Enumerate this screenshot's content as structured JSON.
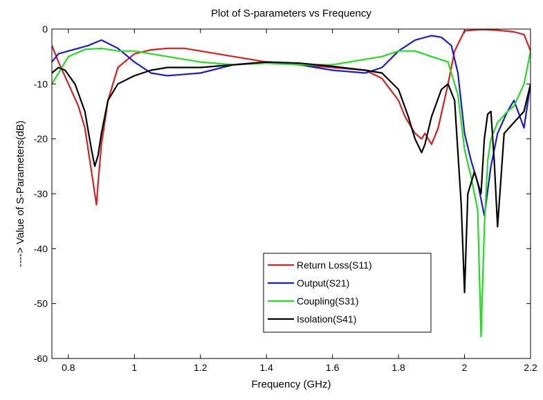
{
  "chart_data": {
    "type": "line",
    "title": "Plot of S-parameters vs Frequency",
    "xlabel": "Frequency (GHz)",
    "ylabel": "----> Value of S-Parameters(dB)",
    "xlim": [
      0.75,
      2.2
    ],
    "ylim": [
      -60,
      0
    ],
    "xticks": [
      0.8,
      1,
      1.2,
      1.4,
      1.6,
      1.8,
      2,
      2.2
    ],
    "xtick_labels": [
      "0.8",
      "1",
      "1.2",
      "1.4",
      "1.6",
      "1.8",
      "2",
      "2.2"
    ],
    "yticks": [
      -60,
      -50,
      -40,
      -30,
      -20,
      -10,
      0
    ],
    "ytick_labels": [
      "-60",
      "-50",
      "-40",
      "-30",
      "-20",
      "-10",
      "0"
    ],
    "grid": false,
    "legend_position": "bottom-center",
    "series": [
      {
        "name": "Return Loss(S11)",
        "color": "#d62020",
        "x": [
          0.75,
          0.77,
          0.8,
          0.83,
          0.85,
          0.87,
          0.88,
          0.885,
          0.89,
          0.9,
          0.92,
          0.95,
          1.0,
          1.05,
          1.1,
          1.15,
          1.2,
          1.3,
          1.4,
          1.5,
          1.6,
          1.7,
          1.75,
          1.8,
          1.82,
          1.85,
          1.87,
          1.88,
          1.9,
          1.92,
          1.95,
          1.97,
          2.0,
          2.05,
          2.1,
          2.15,
          2.18,
          2.2
        ],
        "y": [
          -3,
          -6,
          -10,
          -14,
          -18,
          -26,
          -30,
          -32,
          -28,
          -21,
          -13,
          -7,
          -4.5,
          -3.8,
          -3.5,
          -3.5,
          -4,
          -5,
          -6,
          -6.5,
          -7,
          -7.5,
          -9,
          -13,
          -16,
          -19,
          -20,
          -19,
          -21,
          -18,
          -10,
          -4,
          -0.3,
          -0.1,
          -0.2,
          -0.5,
          -1,
          -4
        ]
      },
      {
        "name": "Output(S21)",
        "color": "#1a1ad4",
        "x": [
          0.75,
          0.77,
          0.8,
          0.83,
          0.86,
          0.9,
          0.95,
          1.0,
          1.05,
          1.1,
          1.2,
          1.3,
          1.4,
          1.5,
          1.6,
          1.7,
          1.75,
          1.8,
          1.85,
          1.9,
          1.93,
          1.96,
          1.98,
          2.0,
          2.02,
          2.04,
          2.06,
          2.08,
          2.1,
          2.13,
          2.15,
          2.18,
          2.2
        ],
        "y": [
          -6,
          -4.5,
          -4,
          -3.5,
          -3,
          -2,
          -3.5,
          -6,
          -8,
          -8.5,
          -8,
          -6.5,
          -6,
          -6.5,
          -7.5,
          -8,
          -7,
          -4,
          -2,
          -1.2,
          -1.5,
          -3,
          -8,
          -19,
          -24,
          -28,
          -34,
          -25,
          -19,
          -15,
          -13,
          -18,
          -10
        ]
      },
      {
        "name": "Coupling(S31)",
        "color": "#22dd22",
        "x": [
          0.75,
          0.77,
          0.8,
          0.85,
          0.9,
          0.95,
          1.0,
          1.1,
          1.2,
          1.3,
          1.4,
          1.5,
          1.6,
          1.7,
          1.75,
          1.8,
          1.85,
          1.9,
          1.95,
          1.98,
          2.0,
          2.02,
          2.04,
          2.05,
          2.06,
          2.07,
          2.08,
          2.1,
          2.13,
          2.15,
          2.18,
          2.2
        ],
        "y": [
          -10,
          -8,
          -5,
          -3.7,
          -3.5,
          -4,
          -4,
          -5,
          -6,
          -6.5,
          -6.2,
          -6.5,
          -6.5,
          -5.5,
          -5,
          -4,
          -4,
          -5,
          -6,
          -12,
          -22,
          -27,
          -33,
          -56,
          -36,
          -24,
          -20,
          -17,
          -15,
          -14,
          -10,
          -4
        ]
      },
      {
        "name": "Isolation(S41)",
        "color": "#000000",
        "x": [
          0.75,
          0.77,
          0.79,
          0.82,
          0.85,
          0.87,
          0.88,
          0.89,
          0.9,
          0.92,
          0.95,
          1.0,
          1.05,
          1.1,
          1.2,
          1.3,
          1.4,
          1.5,
          1.6,
          1.7,
          1.75,
          1.8,
          1.83,
          1.85,
          1.87,
          1.88,
          1.9,
          1.93,
          1.95,
          1.97,
          1.99,
          2.0,
          2.01,
          2.03,
          2.05,
          2.06,
          2.07,
          2.08,
          2.09,
          2.1,
          2.12,
          2.15,
          2.18,
          2.2
        ],
        "y": [
          -8,
          -7,
          -7.5,
          -10,
          -15,
          -22,
          -25,
          -23,
          -19,
          -13,
          -10,
          -8.5,
          -7.5,
          -7,
          -7,
          -6.5,
          -6,
          -6.2,
          -6.8,
          -7.5,
          -8,
          -11,
          -16,
          -20,
          -22.5,
          -21,
          -16,
          -11,
          -10,
          -13,
          -32,
          -48,
          -30,
          -26,
          -30,
          -20,
          -15.5,
          -15,
          -24,
          -36,
          -19,
          -17,
          -15,
          -10
        ]
      }
    ]
  }
}
